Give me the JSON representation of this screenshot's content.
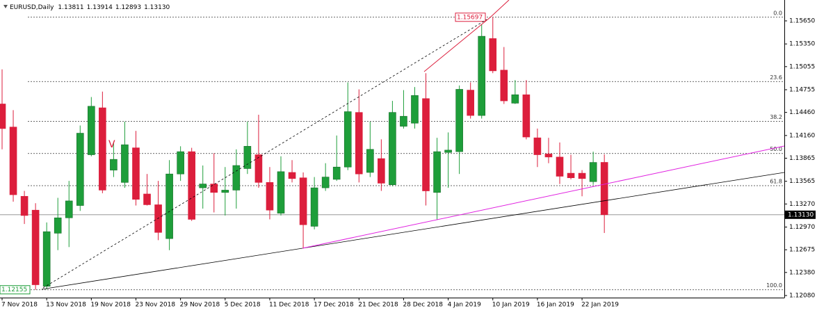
{
  "chart_data": {
    "type": "candlestick",
    "title": "EURUSD,Daily",
    "categories": [
      "7 Nov 2018",
      null,
      null,
      null,
      "13 Nov 2018",
      null,
      null,
      null,
      "19 Nov 2018",
      null,
      null,
      null,
      "23 Nov 2018",
      null,
      null,
      null,
      "29 Nov 2018",
      null,
      null,
      null,
      "5 Dec 2018",
      null,
      null,
      null,
      "11 Dec 2018",
      null,
      null,
      null,
      "17 Dec 2018",
      null,
      null,
      null,
      "21 Dec 2018",
      null,
      null,
      null,
      "28 Dec 2018",
      null,
      null,
      null,
      "4 Jan 2019",
      null,
      null,
      null,
      "10 Jan 2019",
      null,
      null,
      null,
      "16 Jan 2019",
      null,
      null,
      null,
      "22 Jan 2019",
      null,
      null
    ],
    "open": [
      1.1457,
      1.1427,
      1.1337,
      1.1319,
      1.122,
      1.1289,
      1.1309,
      1.1325,
      1.1391,
      1.1452,
      1.1371,
      1.1355,
      1.14,
      1.134,
      1.1326,
      1.1282,
      1.1366,
      1.1395,
      1.1348,
      1.1353,
      1.1342,
      1.1345,
      1.1373,
      1.1391,
      1.1355,
      1.1315,
      1.1368,
      1.1361,
      1.1298,
      1.1348,
      1.1359,
      1.1375,
      1.1446,
      1.1368,
      1.1386,
      1.1352,
      1.1428,
      1.1432,
      1.1464,
      1.1342,
      1.1394,
      1.1395,
      1.1475,
      1.1442,
      1.1542,
      1.1501,
      1.1458,
      1.1469,
      1.1413,
      1.1392,
      1.1388,
      1.1367,
      1.1367,
      1.1356,
      1.13811
    ],
    "high": [
      1.1502,
      1.1449,
      1.1344,
      1.1328,
      1.1303,
      1.1335,
      1.1357,
      1.1429,
      1.1466,
      1.1473,
      1.1407,
      1.1434,
      1.1422,
      1.1366,
      1.1357,
      1.1384,
      1.1402,
      1.14,
      1.1377,
      1.1393,
      1.1375,
      1.1398,
      1.1434,
      1.1443,
      1.1375,
      1.1389,
      1.1384,
      1.1368,
      1.1362,
      1.138,
      1.1416,
      1.1485,
      1.1476,
      1.1434,
      1.1411,
      1.1461,
      1.1475,
      1.1479,
      1.1497,
      1.1413,
      1.142,
      1.1481,
      1.1485,
      1.156,
      1.15697,
      1.1531,
      1.1488,
      1.1488,
      1.1425,
      1.1413,
      1.1407,
      1.1391,
      1.1371,
      1.1395,
      1.13914
    ],
    "low": [
      1.1398,
      1.133,
      1.1301,
      1.12155,
      1.1216,
      1.1267,
      1.1271,
      1.1318,
      1.1389,
      1.1341,
      1.1362,
      1.1348,
      1.1325,
      1.1325,
      1.128,
      1.1267,
      1.1357,
      1.1305,
      1.1321,
      1.1316,
      1.1312,
      1.1321,
      1.1366,
      1.1348,
      1.1307,
      1.1312,
      1.1355,
      1.1269,
      1.1294,
      1.1344,
      1.1357,
      1.1371,
      1.1355,
      1.1362,
      1.1344,
      1.135,
      1.1425,
      1.1425,
      1.1325,
      1.1307,
      1.1348,
      1.1366,
      1.1438,
      1.1438,
      1.1497,
      1.1457,
      1.1457,
      1.1411,
      1.1375,
      1.138,
      1.1353,
      1.1359,
      1.1337,
      1.1352,
      1.12893
    ],
    "close": [
      1.1425,
      1.1339,
      1.1312,
      1.1222,
      1.1291,
      1.1309,
      1.1331,
      1.1419,
      1.1454,
      1.1345,
      1.1385,
      1.1404,
      1.1333,
      1.1326,
      1.129,
      1.1366,
      1.1395,
      1.1307,
      1.1353,
      1.1342,
      1.1345,
      1.1377,
      1.1402,
      1.1355,
      1.1319,
      1.1369,
      1.136,
      1.13,
      1.1348,
      1.1362,
      1.1375,
      1.1447,
      1.1366,
      1.1398,
      1.1354,
      1.1446,
      1.1441,
      1.1468,
      1.1344,
      1.1395,
      1.1397,
      1.1476,
      1.1442,
      1.1545,
      1.15,
      1.1461,
      1.1469,
      1.1414,
      1.1391,
      1.1388,
      1.1363,
      1.1361,
      1.136,
      1.1381,
      1.1313
    ],
    "up_color": "#1e9e3a",
    "down_color": "#dc1e3c",
    "current_price": {
      "value": 1.1313,
      "label": "1.13130"
    },
    "ylim": [
      1.12053,
      1.15921
    ],
    "yticks": [
      {
        "value": 1.1565,
        "label": "1.15650"
      },
      {
        "value": 1.1535,
        "label": "1.15350"
      },
      1.15055,
      1.14755,
      {
        "value": 1.1446,
        "label": "1.14460"
      },
      {
        "value": 1.1416,
        "label": "1.14160"
      },
      1.13865,
      1.13565,
      {
        "value": 1.1327,
        "label": "1.13270"
      },
      {
        "value": 1.1297,
        "label": "1.12970"
      },
      1.12675,
      {
        "value": 1.1238,
        "label": "1.12380"
      },
      {
        "value": 1.1208,
        "label": "1.12080"
      }
    ],
    "fibonacci": {
      "high": 1.15697,
      "low": 1.12155,
      "levels": [
        {
          "value": 0,
          "label": "0.0"
        },
        23.6,
        38.2,
        {
          "value": 50,
          "label": "50.0"
        },
        61.8,
        {
          "value": 100,
          "label": "100.0"
        }
      ]
    },
    "annotations": [
      "V"
    ]
  }
}
